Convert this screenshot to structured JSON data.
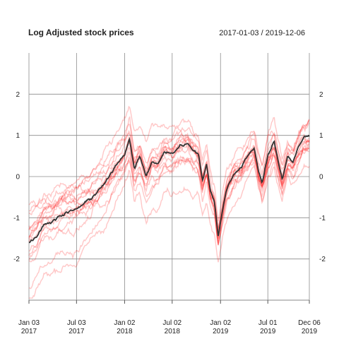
{
  "chart_data": {
    "type": "line",
    "title": "Log Adjusted stock prices",
    "subtitle": "2017-01-03 / 2019-12-06",
    "x_start": "2017-01-03",
    "x_end": "2019-12-06",
    "ylim": [
      -3,
      3
    ],
    "y_ticks": [
      {
        "value": 2,
        "label": "2"
      },
      {
        "value": 1,
        "label": "1"
      },
      {
        "value": 0,
        "label": "0"
      },
      {
        "value": -1,
        "label": "-1"
      },
      {
        "value": -2,
        "label": "-2"
      }
    ],
    "x_ticks": [
      {
        "date": "2017-01-03",
        "line1": "Jan 03",
        "line2": "2017"
      },
      {
        "date": "2017-07-03",
        "line1": "Jul 03",
        "line2": "2017"
      },
      {
        "date": "2018-01-02",
        "line1": "Jan 02",
        "line2": "2018"
      },
      {
        "date": "2018-07-02",
        "line1": "Jul 02",
        "line2": "2018"
      },
      {
        "date": "2019-01-02",
        "line1": "Jan 02",
        "line2": "2019"
      },
      {
        "date": "2019-07-01",
        "line1": "Jul 01",
        "line2": "2019"
      },
      {
        "date": "2019-12-06",
        "line1": "Dec 06",
        "line2": "2019"
      }
    ],
    "grid": true,
    "colors": {
      "stocks": "#ff0000",
      "average": "#333333",
      "grid": "#8c8c8c"
    },
    "main_series": [
      {
        "x": "2017-01-03",
        "y": -1.6
      },
      {
        "x": "2017-02-01",
        "y": -1.45
      },
      {
        "x": "2017-03-01",
        "y": -1.15
      },
      {
        "x": "2017-04-01",
        "y": -1.1
      },
      {
        "x": "2017-05-01",
        "y": -0.95
      },
      {
        "x": "2017-06-01",
        "y": -0.85
      },
      {
        "x": "2017-07-03",
        "y": -0.8
      },
      {
        "x": "2017-08-01",
        "y": -0.65
      },
      {
        "x": "2017-09-01",
        "y": -0.5
      },
      {
        "x": "2017-10-01",
        "y": -0.3
      },
      {
        "x": "2017-11-01",
        "y": -0.05
      },
      {
        "x": "2017-12-01",
        "y": 0.3
      },
      {
        "x": "2018-01-02",
        "y": 0.55
      },
      {
        "x": "2018-01-20",
        "y": 0.9
      },
      {
        "x": "2018-02-08",
        "y": 0.2
      },
      {
        "x": "2018-03-01",
        "y": 0.5
      },
      {
        "x": "2018-03-25",
        "y": 0.0
      },
      {
        "x": "2018-04-15",
        "y": 0.35
      },
      {
        "x": "2018-05-10",
        "y": 0.3
      },
      {
        "x": "2018-06-01",
        "y": 0.6
      },
      {
        "x": "2018-07-02",
        "y": 0.55
      },
      {
        "x": "2018-08-01",
        "y": 0.75
      },
      {
        "x": "2018-09-01",
        "y": 0.8
      },
      {
        "x": "2018-09-20",
        "y": 0.65
      },
      {
        "x": "2018-10-10",
        "y": 0.55
      },
      {
        "x": "2018-10-25",
        "y": -0.1
      },
      {
        "x": "2018-11-10",
        "y": 0.3
      },
      {
        "x": "2018-11-25",
        "y": -0.35
      },
      {
        "x": "2018-12-10",
        "y": -0.6
      },
      {
        "x": "2018-12-24",
        "y": -1.45
      },
      {
        "x": "2019-01-02",
        "y": -1.1
      },
      {
        "x": "2019-01-25",
        "y": -0.3
      },
      {
        "x": "2019-02-25",
        "y": 0.1
      },
      {
        "x": "2019-03-20",
        "y": 0.2
      },
      {
        "x": "2019-04-20",
        "y": 0.55
      },
      {
        "x": "2019-05-10",
        "y": 0.7
      },
      {
        "x": "2019-05-28",
        "y": 0.1
      },
      {
        "x": "2019-06-10",
        "y": -0.15
      },
      {
        "x": "2019-07-01",
        "y": 0.5
      },
      {
        "x": "2019-07-25",
        "y": 0.85
      },
      {
        "x": "2019-08-10",
        "y": 0.35
      },
      {
        "x": "2019-08-25",
        "y": -0.05
      },
      {
        "x": "2019-09-15",
        "y": 0.5
      },
      {
        "x": "2019-10-05",
        "y": 0.35
      },
      {
        "x": "2019-10-25",
        "y": 0.7
      },
      {
        "x": "2019-11-15",
        "y": 0.95
      },
      {
        "x": "2019-12-06",
        "y": 1.0
      }
    ]
  }
}
